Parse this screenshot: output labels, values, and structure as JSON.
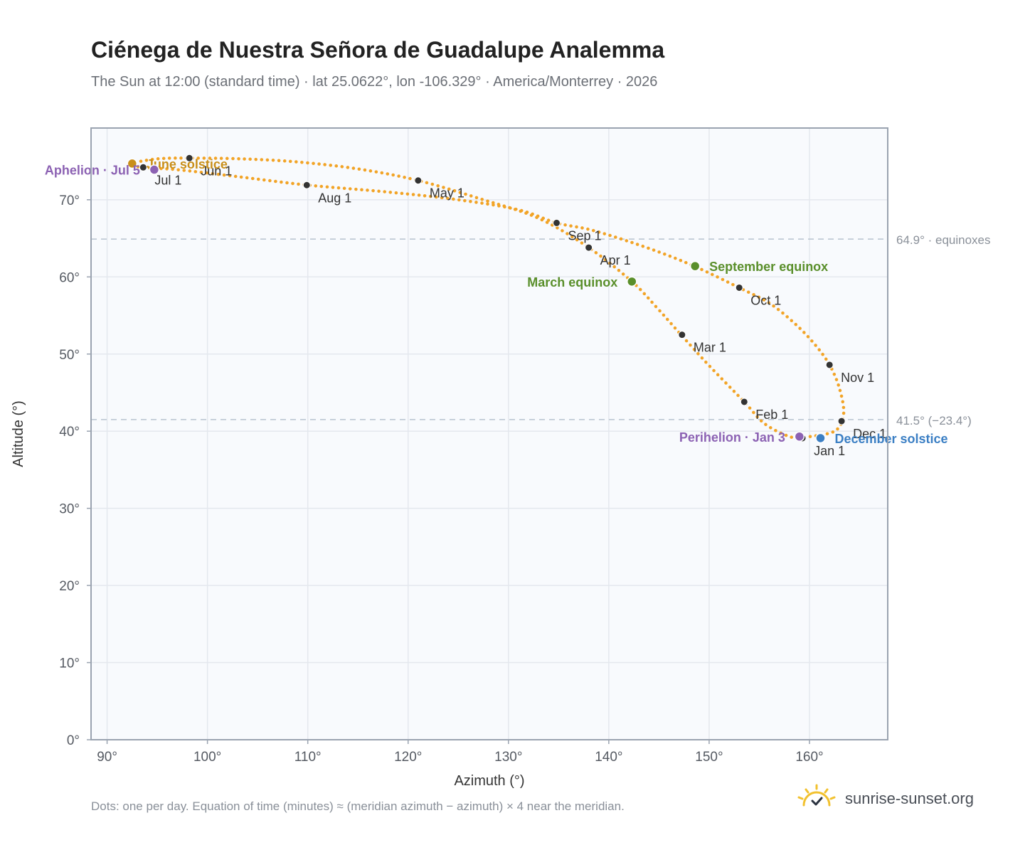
{
  "title": "Ciénega de Nuestra Señora de Guadalupe Analemma",
  "subtitle": "The Sun at 12:00 (standard time) · lat 25.0622°, lon -106.329° · America/Monterrey · 2026",
  "footnote": "Dots: one per day. Equation of time (minutes) ≈ (meridian azimuth − azimuth) × 4 near the meridian.",
  "brand": {
    "name": "sunrise-sunset.org",
    "icon": "sun-check-icon",
    "color": "#f2c12e"
  },
  "colors": {
    "curve": "#f2a427",
    "month_dot": "#333333",
    "solstice_june": "#c98f1a",
    "solstice_december": "#3b7fc4",
    "equinox": "#5a8f2b",
    "apsis": "#8c62b3",
    "reference_line": "#b7c4d0",
    "plot_bg": "#f8fafd",
    "grid": "#e4e8ee",
    "frame": "#9aa3b0"
  },
  "chart_data": {
    "type": "scatter",
    "xlabel": "Azimuth (°)",
    "ylabel": "Altitude (°)",
    "xlim": [
      88.4,
      167.8
    ],
    "ylim": [
      0,
      79.3
    ],
    "x_ticks": [
      90,
      100,
      110,
      120,
      130,
      140,
      150,
      160
    ],
    "x_tick_labels": [
      "90°",
      "100°",
      "110°",
      "120°",
      "130°",
      "140°",
      "150°",
      "160°"
    ],
    "y_ticks": [
      0,
      10,
      20,
      30,
      40,
      50,
      60,
      70
    ],
    "y_tick_labels": [
      "0°",
      "10°",
      "20°",
      "30°",
      "40°",
      "50°",
      "60°",
      "70°"
    ],
    "grid": true,
    "reference_lines": [
      {
        "y": 64.9,
        "label": "64.9° · equinoxes"
      },
      {
        "y": 41.5,
        "label": "41.5° (−23.4°)"
      }
    ],
    "analemma_path": [
      [
        159.5,
        39.2
      ],
      [
        162.5,
        40.0
      ],
      [
        163.4,
        42.2
      ],
      [
        163.0,
        45.5
      ],
      [
        162.0,
        48.6
      ],
      [
        160.5,
        51.3
      ],
      [
        158.5,
        54.0
      ],
      [
        156.0,
        56.6
      ],
      [
        153.0,
        58.6
      ],
      [
        148.5,
        61.4
      ],
      [
        144.0,
        63.7
      ],
      [
        138.5,
        66.0
      ],
      [
        134.8,
        67.0
      ],
      [
        131.0,
        68.7
      ],
      [
        125.0,
        70.0
      ],
      [
        118.0,
        71.0
      ],
      [
        110.0,
        71.9
      ],
      [
        103.0,
        73.0
      ],
      [
        97.0,
        73.9
      ],
      [
        93.5,
        74.2
      ],
      [
        92.5,
        74.7
      ],
      [
        95.0,
        75.3
      ],
      [
        98.2,
        75.4
      ],
      [
        103.5,
        75.3
      ],
      [
        109.0,
        74.9
      ],
      [
        115.0,
        74.0
      ],
      [
        121.0,
        72.5
      ],
      [
        127.5,
        70.0
      ],
      [
        133.0,
        67.6
      ],
      [
        138.0,
        63.8
      ],
      [
        142.3,
        59.4
      ],
      [
        144.8,
        56.0
      ],
      [
        147.2,
        52.5
      ],
      [
        150.0,
        48.5
      ],
      [
        153.5,
        43.8
      ],
      [
        155.5,
        41.0
      ],
      [
        158.0,
        39.3
      ],
      [
        159.5,
        39.2
      ]
    ],
    "month_markers": [
      {
        "label": "Jan 1",
        "az": 159.3,
        "alt": 39.1
      },
      {
        "label": "Feb 1",
        "az": 153.5,
        "alt": 43.8
      },
      {
        "label": "Mar 1",
        "az": 147.3,
        "alt": 52.5
      },
      {
        "label": "Apr 1",
        "az": 138.0,
        "alt": 63.8
      },
      {
        "label": "May 1",
        "az": 121.0,
        "alt": 72.5
      },
      {
        "label": "Jun 1",
        "az": 98.2,
        "alt": 75.4
      },
      {
        "label": "Jul 1",
        "az": 93.6,
        "alt": 74.2
      },
      {
        "label": "Aug 1",
        "az": 109.9,
        "alt": 71.9
      },
      {
        "label": "Sep 1",
        "az": 134.8,
        "alt": 67.0
      },
      {
        "label": "Oct 1",
        "az": 153.0,
        "alt": 58.6
      },
      {
        "label": "Nov 1",
        "az": 162.0,
        "alt": 48.6
      },
      {
        "label": "Dec 1",
        "az": 163.2,
        "alt": 41.3
      }
    ],
    "events": [
      {
        "label": "June solstice",
        "az": 92.5,
        "alt": 74.7,
        "kind": "solstice_june"
      },
      {
        "label": "Aphelion · Jul 5",
        "az": 94.7,
        "alt": 73.9,
        "kind": "apsis"
      },
      {
        "label": "March equinox",
        "az": 142.3,
        "alt": 59.4,
        "kind": "equinox"
      },
      {
        "label": "September equinox",
        "az": 148.6,
        "alt": 61.4,
        "kind": "equinox"
      },
      {
        "label": "Perihelion · Jan 3",
        "az": 159.0,
        "alt": 39.3,
        "kind": "apsis"
      },
      {
        "label": "December solstice",
        "az": 161.1,
        "alt": 39.1,
        "kind": "solstice_december"
      }
    ]
  }
}
